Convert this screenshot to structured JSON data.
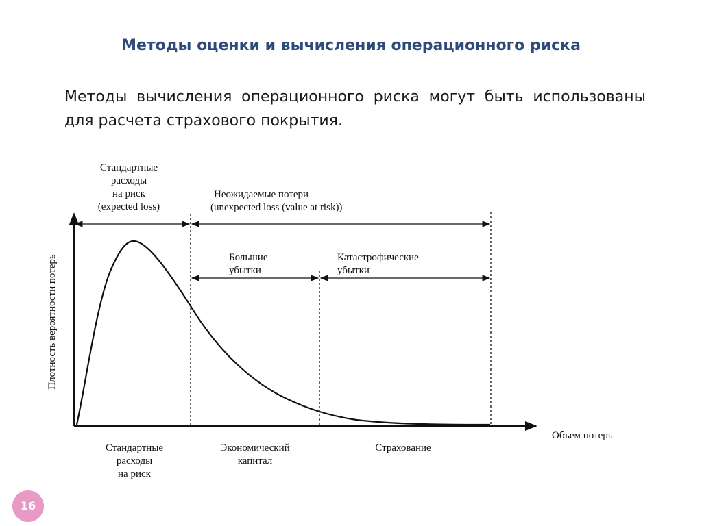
{
  "slide": {
    "title": "Методы оценки и вычисления операционного риска",
    "body": "Методы вычисления операционного риска могут быть использованы для расчета страхового покрытия.",
    "page_number": "16"
  },
  "diagram": {
    "y_axis_label": "Плотность вероятности потерь",
    "x_axis_label": "Объем потерь",
    "top_left_block": [
      "Стандартные",
      "расходы",
      "на риск",
      "(expected loss)"
    ],
    "top_right_block": [
      "Неожидаемые потери",
      "(unexpected loss (value at risk))"
    ],
    "mid_left_block": [
      "Большие",
      "убытки"
    ],
    "mid_right_block": [
      "Катастрофические",
      "убытки"
    ],
    "bottom_left_block": [
      "Стандартные",
      "расходы",
      "на риск"
    ],
    "bottom_middle_block": [
      "Экономический",
      "капитал"
    ],
    "bottom_right_block": [
      "Страхование"
    ]
  },
  "colors": {
    "title": "#2e4a7a",
    "badge": "#e899c6"
  }
}
